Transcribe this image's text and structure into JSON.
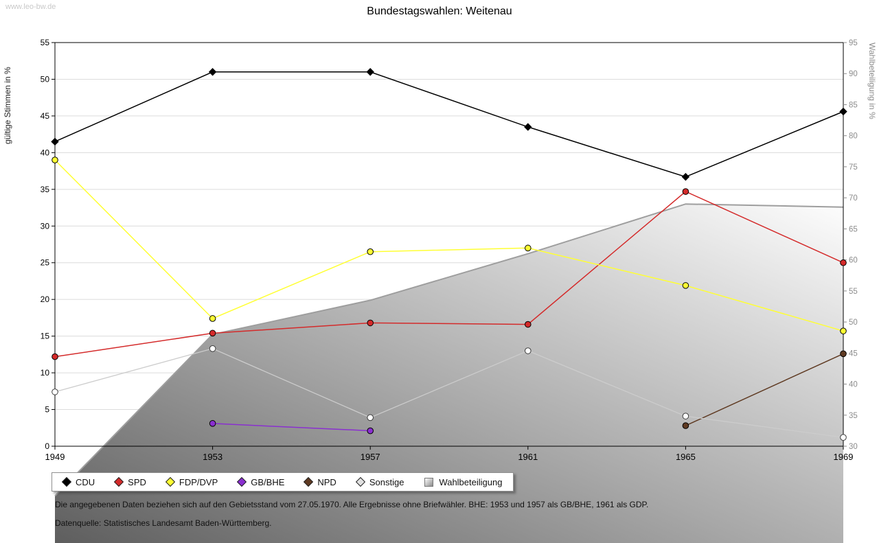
{
  "page": {
    "watermark": "www.leo-bw.de",
    "title": "Bundestagswahlen: Weitenau",
    "footnote_line1": "Die angegebenen Daten beziehen sich auf den Gebietsstand vom 27.05.1970. Alle Ergebnisse ohne Briefwähler. BHE: 1953 und 1957 als GB/BHE, 1961 als GDP.",
    "footnote_line2": "Datenquelle: Statistisches Landesamt Baden-Württemberg."
  },
  "chart_data": {
    "type": "line",
    "title": "Bundestagswahlen: Weitenau",
    "categories": [
      "1949",
      "1953",
      "1957",
      "1961",
      "1965",
      "1969"
    ],
    "axes": {
      "left": {
        "label": "gültige Stimmen in %",
        "min": 0,
        "max": 55,
        "step": 5
      },
      "right": {
        "label": "Wahlbeteiligung in %",
        "min": 30,
        "max": 95,
        "step": 5
      }
    },
    "grid": true,
    "legend_position": "bottom-left",
    "series": [
      {
        "name": "CDU",
        "type": "line",
        "axis": "left",
        "color": "#000000",
        "marker": "diamond",
        "values": [
          41.5,
          51.0,
          51.0,
          43.5,
          36.7,
          45.6
        ]
      },
      {
        "name": "SPD",
        "type": "line",
        "axis": "left",
        "color": "#d42a2a",
        "marker": "circle",
        "values": [
          12.2,
          15.4,
          16.8,
          16.6,
          34.7,
          25.0
        ]
      },
      {
        "name": "FDP/DVP",
        "type": "line",
        "axis": "left",
        "color": "#ffff33",
        "marker": "circle",
        "values": [
          39.0,
          17.4,
          26.5,
          27.0,
          21.9,
          15.7
        ]
      },
      {
        "name": "GB/BHE",
        "type": "line",
        "axis": "left",
        "color": "#8a2fd0",
        "marker": "circle",
        "values": [
          null,
          3.1,
          2.1,
          null,
          null,
          null
        ]
      },
      {
        "name": "NPD",
        "type": "line",
        "axis": "left",
        "color": "#5f3a22",
        "marker": "circle",
        "values": [
          null,
          null,
          null,
          null,
          2.8,
          12.6
        ]
      },
      {
        "name": "Sonstige",
        "type": "line",
        "axis": "left",
        "color": "#cccccc",
        "marker": "circle",
        "marker_fill": "#ffffff",
        "marker_stroke": "#3c3c3c",
        "legend_color": "#e0e0e0",
        "values": [
          7.4,
          13.3,
          3.9,
          13.0,
          4.1,
          1.2
        ]
      },
      {
        "name": "Wahlbeteiligung",
        "type": "area",
        "axis": "right",
        "color": "#9e9e9e",
        "values": [
          22,
          48,
          53.5,
          61,
          69,
          68.5
        ]
      }
    ]
  }
}
